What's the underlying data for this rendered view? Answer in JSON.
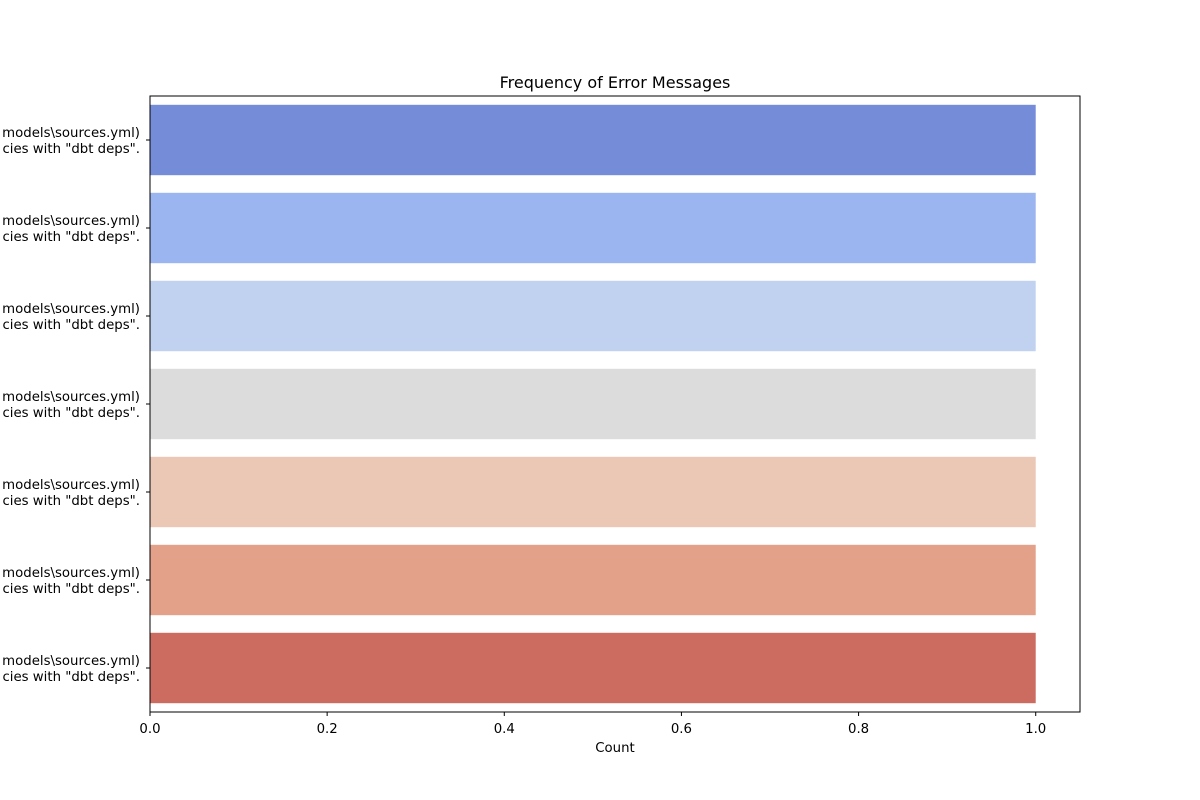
{
  "chart_data": {
    "type": "bar",
    "orientation": "horizontal",
    "title": "Frequency of Error Messages",
    "xlabel": "Count",
    "ylabel": "",
    "xlim": [
      0,
      1.05
    ],
    "xticks": [
      0.0,
      0.2,
      0.4,
      0.6,
      0.8,
      1.0
    ],
    "xtick_labels": [
      "0.0",
      "0.2",
      "0.4",
      "0.6",
      "0.8",
      "1.0"
    ],
    "categories": [
      [
        "models\\sources.yml)",
        "cies with \"dbt deps\"."
      ],
      [
        "models\\sources.yml)",
        "cies with \"dbt deps\"."
      ],
      [
        "models\\sources.yml)",
        "cies with \"dbt deps\"."
      ],
      [
        "models\\sources.yml)",
        "cies with \"dbt deps\"."
      ],
      [
        "models\\sources.yml)",
        "cies with \"dbt deps\"."
      ],
      [
        "models\\sources.yml)",
        "cies with \"dbt deps\"."
      ],
      [
        "models\\sources.yml)",
        "cies with \"dbt deps\"."
      ]
    ],
    "values": [
      1,
      1,
      1,
      1,
      1,
      1,
      1
    ],
    "colors": [
      "#758cd9",
      "#9bb5f0",
      "#c1d2f0",
      "#dcdcdc",
      "#ebc7b6",
      "#e4a18a",
      "#cc6b5f"
    ],
    "grid": false,
    "legend": "none"
  }
}
